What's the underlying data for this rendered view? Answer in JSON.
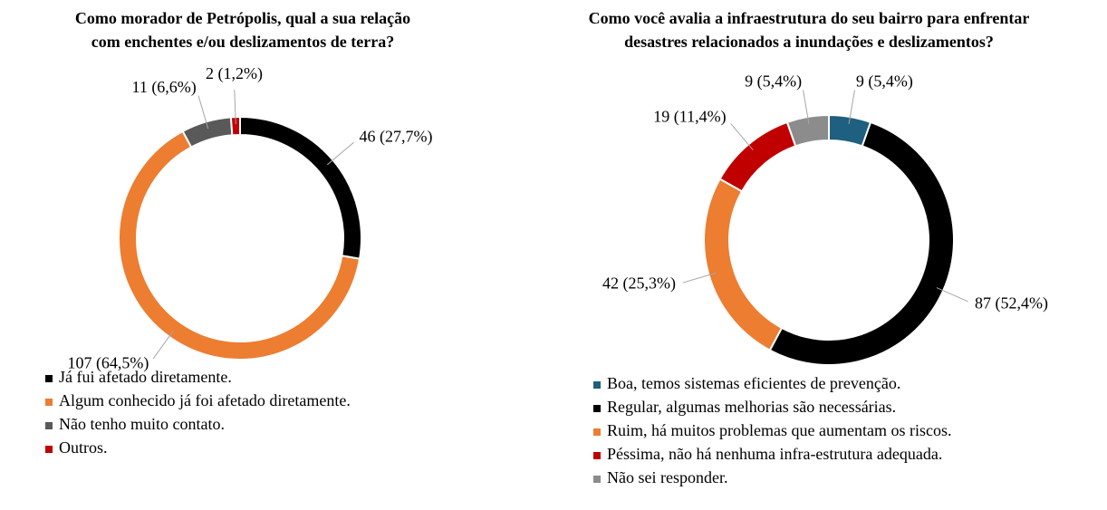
{
  "chart_data": [
    {
      "type": "donut",
      "title": [
        "Como morador de Petrópolis, qual a sua relação",
        "com enchentes e/ou deslizamentos de terra?"
      ],
      "categories": [
        "Já fui afetado diretamente.",
        "Algum conhecido já foi afetado diretamente.",
        "Não tenho muito contato.",
        "Outros."
      ],
      "values": [
        46,
        107,
        11,
        2
      ],
      "value_labels": [
        "46 (27,7%)",
        "107 (64,5%)",
        "11 (6,6%)",
        "2 (1,2%)"
      ],
      "colors": [
        "#000000",
        "#ed7d31",
        "#595959",
        "#c00000"
      ]
    },
    {
      "type": "donut",
      "title": [
        "Como você avalia a infraestrutura do seu bairro para enfrentar",
        "desastres relacionados a inundações e deslizamentos?"
      ],
      "categories": [
        "Boa, temos sistemas eficientes de prevenção.",
        "Regular, algumas melhorias são necessárias.",
        "Ruim, há muitos problemas que aumentam os riscos.",
        "Péssima, não há nenhuma infra-estrutura adequada.",
        "Não sei responder."
      ],
      "values": [
        9,
        87,
        42,
        19,
        9
      ],
      "value_labels": [
        "9 (5,4%)",
        "87 (52,4%)",
        "42 (25,3%)",
        "19 (11,4%)",
        "9 (5,4%)"
      ],
      "colors": [
        "#1f5f7f",
        "#000000",
        "#ed7d31",
        "#c00000",
        "#8c8c8c"
      ]
    }
  ]
}
